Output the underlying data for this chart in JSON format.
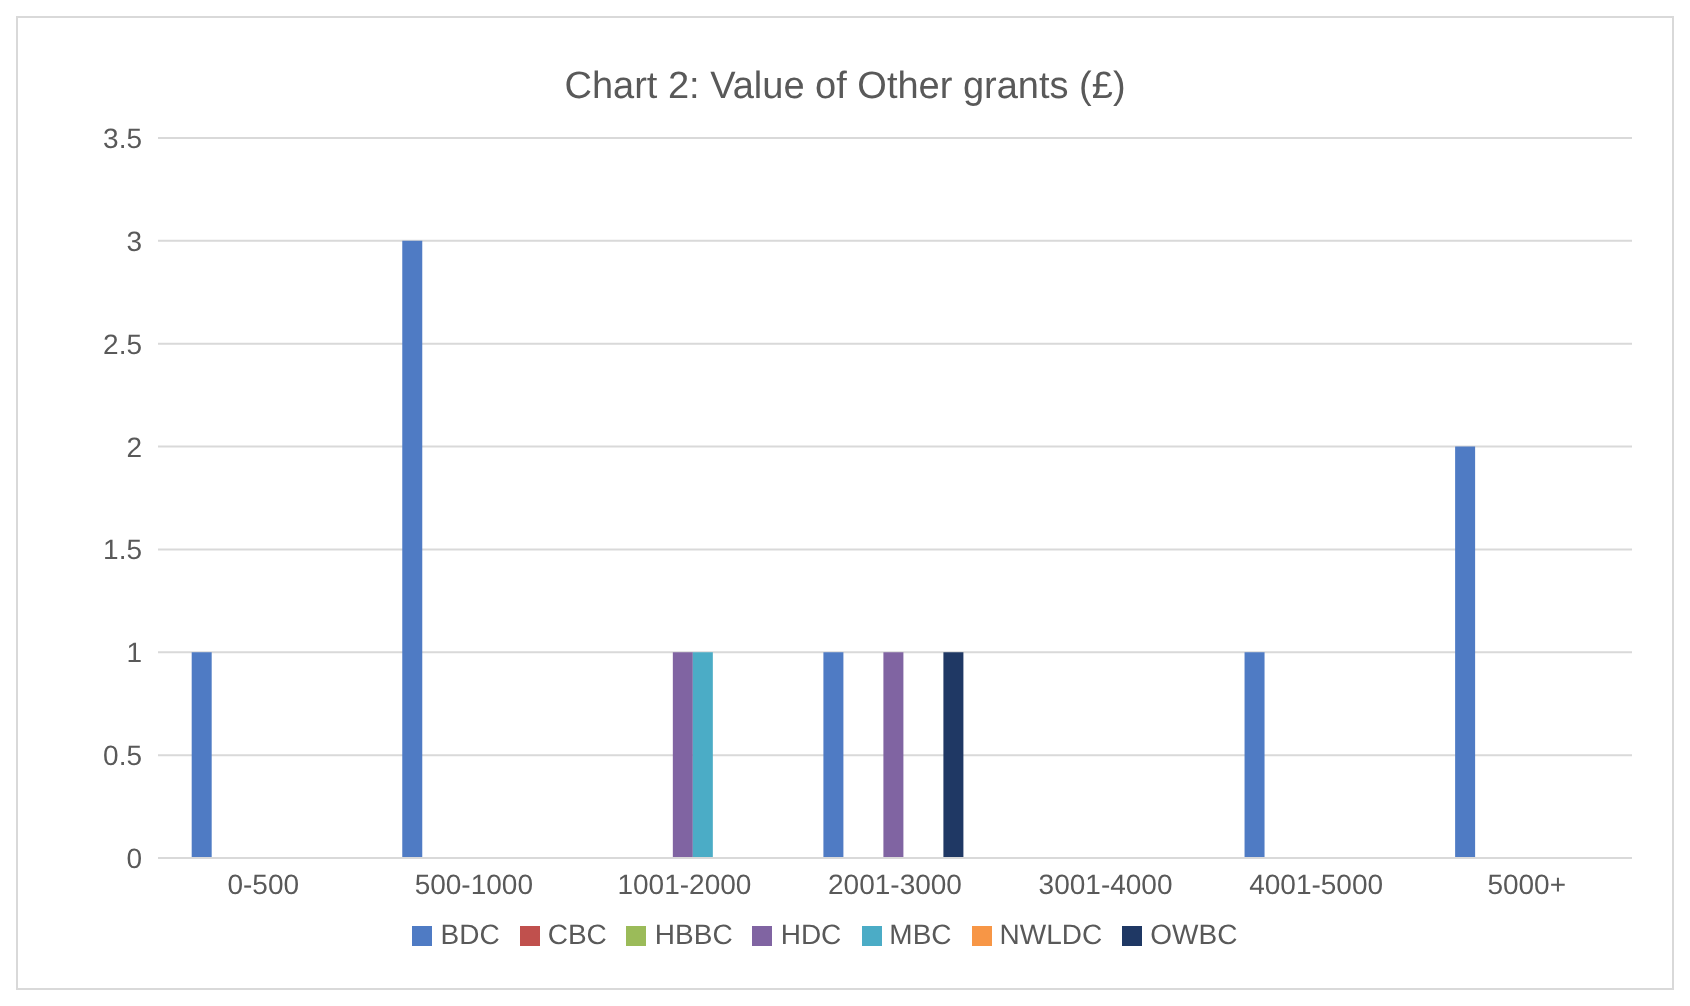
{
  "chart_data": {
    "type": "bar",
    "title": "Chart 2: Value of Other grants (£)",
    "categories": [
      "0-500",
      "500-1000",
      "1001-2000",
      "2001-3000",
      "3001-4000",
      "4001-5000",
      "5000+"
    ],
    "series": [
      {
        "name": "BDC",
        "color": "#4f7bc4",
        "values": [
          1,
          3,
          0,
          1,
          0,
          1,
          2
        ]
      },
      {
        "name": "CBC",
        "color": "#c0504d",
        "values": [
          0,
          0,
          0,
          0,
          0,
          0,
          0
        ]
      },
      {
        "name": "HBBC",
        "color": "#9bbb59",
        "values": [
          0,
          0,
          0,
          0,
          0,
          0,
          0
        ]
      },
      {
        "name": "HDC",
        "color": "#8064a2",
        "values": [
          0,
          0,
          1,
          1,
          0,
          0,
          0
        ]
      },
      {
        "name": "MBC",
        "color": "#4bacc6",
        "values": [
          0,
          0,
          1,
          0,
          0,
          0,
          0
        ]
      },
      {
        "name": "NWLDC",
        "color": "#f79646",
        "values": [
          0,
          0,
          0,
          0,
          0,
          0,
          0
        ]
      },
      {
        "name": "OWBC",
        "color": "#1f3864",
        "values": [
          0,
          0,
          0,
          1,
          0,
          0,
          0
        ]
      }
    ],
    "ylim": [
      0,
      3.5
    ],
    "yticks": [
      0,
      0.5,
      1,
      1.5,
      2,
      2.5,
      3,
      3.5
    ],
    "grid": "y",
    "legend": "bottom"
  }
}
